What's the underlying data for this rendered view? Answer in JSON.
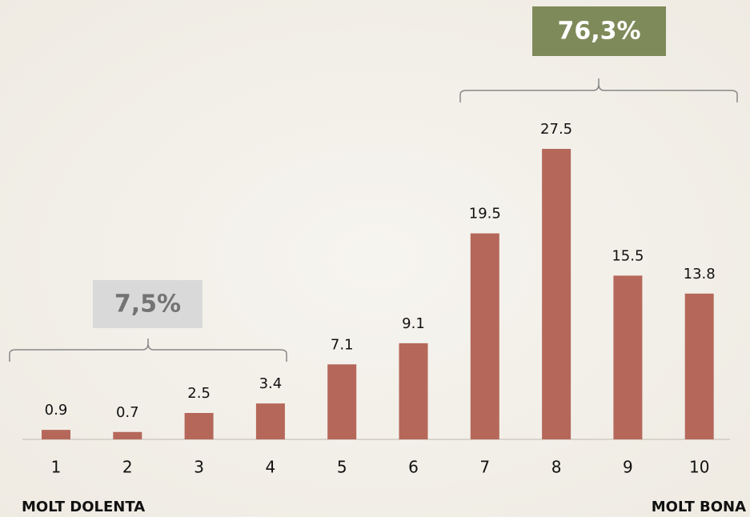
{
  "chart_data": {
    "type": "bar",
    "categories": [
      "1",
      "2",
      "3",
      "4",
      "5",
      "6",
      "7",
      "8",
      "9",
      "10"
    ],
    "values": [
      0.9,
      0.7,
      2.5,
      3.4,
      7.1,
      9.1,
      19.5,
      27.5,
      15.5,
      13.8
    ],
    "color": "#b5685a",
    "annotations": [
      "7,5%",
      "76,3%"
    ],
    "axis_end_labels": [
      "MOLT DOLENTA",
      "MOLT BONA"
    ]
  }
}
